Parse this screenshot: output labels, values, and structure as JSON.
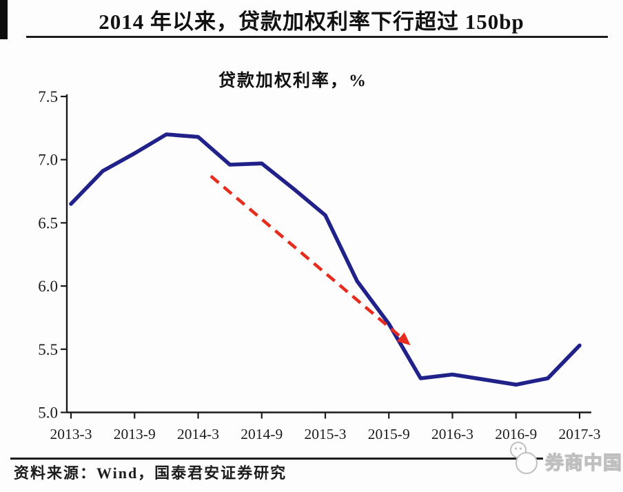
{
  "page": {
    "title": "2014 年以来，贷款加权利率下行超过 150bp",
    "source_note": "资料来源：Wind，国泰君安证券研究",
    "watermark_text": "券商中国"
  },
  "chart_data": {
    "type": "line",
    "title": "贷款加权利率，%",
    "categories": [
      "2013-3",
      "2013-6",
      "2013-9",
      "2013-12",
      "2014-3",
      "2014-6",
      "2014-9",
      "2014-12",
      "2015-3",
      "2015-6",
      "2015-9",
      "2015-12",
      "2016-3",
      "2016-6",
      "2016-9",
      "2016-12",
      "2017-3"
    ],
    "values": [
      6.65,
      6.91,
      7.05,
      7.2,
      7.18,
      6.96,
      6.97,
      6.77,
      6.56,
      6.04,
      5.7,
      5.27,
      5.3,
      5.26,
      5.22,
      5.27,
      5.53
    ],
    "x_tick_labels": [
      "2013-3",
      "2013-9",
      "2014-3",
      "2014-9",
      "2015-3",
      "2015-9",
      "2016-3",
      "2016-9",
      "2017-3"
    ],
    "y_ticks": [
      7.5,
      7.0,
      6.5,
      6.0,
      5.5,
      5.0
    ],
    "ylim": [
      5.0,
      7.5
    ],
    "xlabel": "",
    "ylabel": "",
    "grid": false,
    "legend": "none",
    "colors": {
      "line": "#21218a",
      "annotation": "#e62c1e",
      "axis": "#1a1a1a",
      "tick_text": "#1c1c1c",
      "watermark": "#bfbfbf"
    },
    "annotation": {
      "type": "dashed-arrow",
      "from": {
        "x_index": 4.4,
        "value": 6.87
      },
      "to": {
        "x_index": 10.5,
        "value": 5.57
      }
    }
  }
}
